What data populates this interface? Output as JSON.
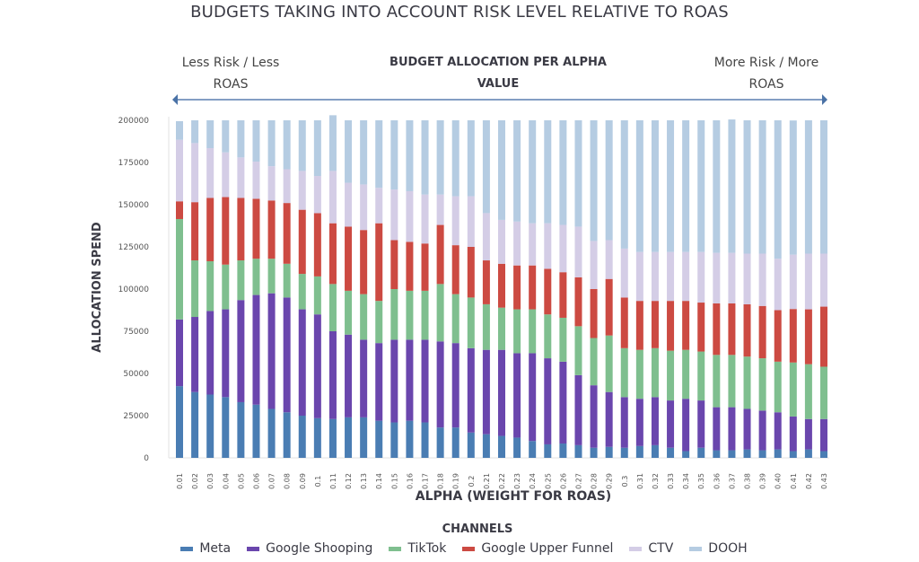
{
  "chart_data": {
    "type": "bar",
    "stacked": true,
    "title": "BUDGETS TAKING INTO ACCOUNT RISK LEVEL RELATIVE TO ROAS",
    "subtitle": "BUDGET ALLOCATION PER ALPHA VALUE",
    "annotations": {
      "left": "Less Risk / Less ROAS",
      "right": "More Risk / More ROAS",
      "arrow": "double-headed arrow spanning the x-axis"
    },
    "xlabel": "ALPHA (WEIGHT FOR ROAS)",
    "ylabel": "ALLOCATION SPEND",
    "ylim": [
      0,
      200000
    ],
    "yticks": [
      0,
      25000,
      50000,
      75000,
      100000,
      125000,
      150000,
      175000,
      200000
    ],
    "grid": false,
    "legend_title": "CHANNELS",
    "legend_position": "bottom",
    "categories": [
      "0.01",
      "0.02",
      "0.03",
      "0.04",
      "0.05",
      "0.06",
      "0.07",
      "0.08",
      "0.09",
      "0.1",
      "0.11",
      "0.12",
      "0.13",
      "0.14",
      "0.15",
      "0.16",
      "0.17",
      "0.18",
      "0.19",
      "0.2",
      "0.21",
      "0.22",
      "0.23",
      "0.24",
      "0.25",
      "0.26",
      "0.27",
      "0.28",
      "0.29",
      "0.3",
      "0.31",
      "0.32",
      "0.33",
      "0.34",
      "0.35",
      "0.36",
      "0.37",
      "0.38",
      "0.39",
      "0.40",
      "0.41",
      "0.42",
      "0.43"
    ],
    "series": [
      {
        "name": "Meta",
        "color": "#4a7db3",
        "values": [
          42500,
          39000,
          37500,
          36000,
          33000,
          31500,
          29000,
          27000,
          25000,
          23500,
          23000,
          24000,
          24000,
          22000,
          21000,
          22000,
          21000,
          18000,
          18000,
          15000,
          14000,
          13000,
          12000,
          10000,
          8000,
          8500,
          7500,
          6000,
          6500,
          6000,
          7000,
          7500,
          6000,
          4000,
          6000,
          4500,
          4500,
          5000,
          4500,
          5000,
          4000,
          5000,
          4000
        ]
      },
      {
        "name": "Google Shooping",
        "color": "#6a46ad",
        "values": [
          39500,
          44500,
          49500,
          52000,
          60500,
          65000,
          68500,
          68000,
          63000,
          61500,
          52000,
          49000,
          46000,
          46000,
          49000,
          48000,
          49000,
          51000,
          50000,
          50000,
          50000,
          51000,
          50000,
          52000,
          51000,
          48500,
          41500,
          37000,
          32500,
          30000,
          28000,
          28500,
          28000,
          31000,
          28000,
          25500,
          25500,
          24000,
          23500,
          22000,
          20500,
          18000,
          19000
        ]
      },
      {
        "name": "TikTok",
        "color": "#7fbf8f",
        "values": [
          59500,
          33500,
          29500,
          26500,
          23500,
          21500,
          20500,
          20000,
          21000,
          22500,
          28000,
          26000,
          27000,
          25000,
          30000,
          29000,
          29000,
          34000,
          29000,
          30000,
          27000,
          25000,
          26000,
          26000,
          26000,
          26000,
          29000,
          28000,
          33500,
          29000,
          29000,
          29000,
          29500,
          29000,
          29000,
          31000,
          31000,
          31000,
          31000,
          30000,
          32000,
          32500,
          31000
        ]
      },
      {
        "name": "Google Upper Funnel",
        "color": "#cc4a42",
        "values": [
          10500,
          34500,
          37500,
          40000,
          37000,
          35500,
          34500,
          36000,
          38000,
          37500,
          36000,
          38000,
          38000,
          46000,
          29000,
          29000,
          28000,
          35000,
          29000,
          30000,
          26000,
          26000,
          26000,
          26000,
          27000,
          27000,
          29000,
          29000,
          33500,
          30000,
          29000,
          28000,
          29500,
          29000,
          29000,
          30500,
          30500,
          31000,
          31000,
          30500,
          31700,
          32500,
          35600
        ]
      },
      {
        "name": "CTV",
        "color": "#d4cde6",
        "values": [
          36500,
          35000,
          29500,
          26500,
          24000,
          22000,
          20300,
          20000,
          23000,
          22000,
          31000,
          26000,
          27000,
          21000,
          30000,
          30000,
          29000,
          18000,
          29000,
          30000,
          28000,
          26000,
          26000,
          25000,
          27000,
          28000,
          30000,
          28500,
          23000,
          29000,
          29000,
          29000,
          29000,
          29000,
          30000,
          30000,
          30000,
          30000,
          31000,
          30500,
          32200,
          33000,
          31400
        ]
      },
      {
        "name": "DOOH",
        "color": "#b5cce2",
        "values": [
          11000,
          13500,
          16500,
          19000,
          22000,
          24500,
          27200,
          29000,
          30000,
          33000,
          33000,
          37000,
          38000,
          40000,
          41000,
          42000,
          44000,
          44000,
          45000,
          45000,
          55000,
          59000,
          60000,
          61000,
          61000,
          62000,
          63000,
          71500,
          71000,
          76000,
          78000,
          78000,
          78000,
          78000,
          78000,
          78500,
          79000,
          79000,
          79000,
          82000,
          79500,
          79000,
          79000
        ]
      }
    ]
  }
}
